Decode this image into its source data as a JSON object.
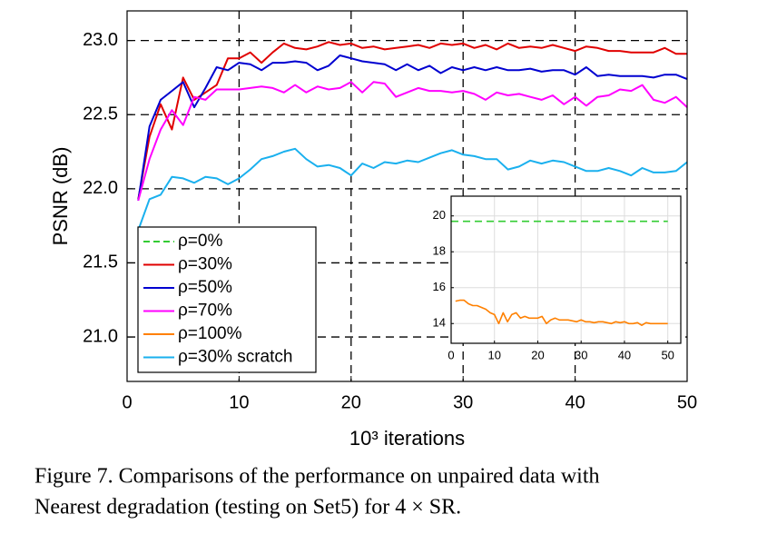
{
  "chart_data": [
    {
      "type": "line",
      "xlabel": "10³ iterations",
      "ylabel": "PSNR (dB)",
      "x": [
        1,
        2,
        3,
        4,
        5,
        6,
        7,
        8,
        9,
        10,
        11,
        12,
        13,
        14,
        15,
        16,
        17,
        18,
        19,
        20,
        21,
        22,
        23,
        24,
        25,
        26,
        27,
        28,
        29,
        30,
        31,
        32,
        33,
        34,
        35,
        36,
        37,
        38,
        39,
        40,
        41,
        42,
        43,
        44,
        45,
        46,
        47,
        48,
        49,
        50
      ],
      "xlim": [
        0,
        50
      ],
      "xticks": [
        0,
        10,
        20,
        30,
        40,
        50
      ],
      "ylim": [
        20.7,
        23.2
      ],
      "yticks": [
        {
          "value": 21,
          "label": "21.0"
        },
        21.5,
        {
          "value": 22,
          "label": "22.0"
        },
        22.5,
        {
          "value": 23,
          "label": "23.0"
        }
      ],
      "grid": true,
      "series": [
        {
          "name": "ρ=30%",
          "color": "#e00000",
          "values": [
            21.93,
            22.35,
            22.57,
            22.4,
            22.75,
            22.6,
            22.65,
            22.7,
            22.88,
            22.88,
            22.92,
            22.85,
            22.92,
            22.98,
            22.95,
            22.94,
            22.96,
            22.99,
            22.97,
            22.98,
            22.95,
            22.96,
            22.94,
            22.95,
            22.96,
            22.97,
            22.95,
            22.98,
            22.97,
            22.98,
            22.95,
            22.97,
            22.94,
            22.98,
            22.95,
            22.96,
            22.95,
            22.97,
            22.95,
            22.93,
            22.96,
            22.95,
            22.93,
            22.93,
            22.92,
            22.92,
            22.92,
            22.95,
            22.91,
            22.91
          ]
        },
        {
          "name": "ρ=50%",
          "color": "#0000d0",
          "values": [
            21.92,
            22.42,
            22.6,
            22.66,
            22.72,
            22.55,
            22.68,
            22.82,
            22.8,
            22.85,
            22.84,
            22.8,
            22.85,
            22.85,
            22.86,
            22.85,
            22.8,
            22.83,
            22.9,
            22.88,
            22.86,
            22.85,
            22.84,
            22.8,
            22.84,
            22.8,
            22.83,
            22.78,
            22.82,
            22.8,
            22.82,
            22.8,
            22.82,
            22.8,
            22.8,
            22.81,
            22.79,
            22.8,
            22.8,
            22.77,
            22.82,
            22.76,
            22.77,
            22.76,
            22.76,
            22.76,
            22.75,
            22.77,
            22.77,
            22.74
          ]
        },
        {
          "name": "ρ=70%",
          "color": "#ff00ff",
          "values": [
            21.92,
            22.2,
            22.4,
            22.53,
            22.43,
            22.62,
            22.6,
            22.67,
            22.67,
            22.67,
            22.68,
            22.69,
            22.68,
            22.65,
            22.7,
            22.65,
            22.69,
            22.67,
            22.68,
            22.72,
            22.65,
            22.72,
            22.71,
            22.62,
            22.65,
            22.68,
            22.66,
            22.66,
            22.65,
            22.66,
            22.64,
            22.6,
            22.65,
            22.63,
            22.64,
            22.62,
            22.6,
            22.63,
            22.57,
            22.62,
            22.56,
            22.62,
            22.63,
            22.67,
            22.66,
            22.7,
            22.6,
            22.58,
            22.62,
            22.55
          ]
        },
        {
          "name": "ρ=30% scratch",
          "color": "#1ab0ee",
          "values": [
            21.72,
            21.93,
            21.96,
            22.08,
            22.07,
            22.04,
            22.08,
            22.07,
            22.03,
            22.07,
            22.13,
            22.2,
            22.22,
            22.25,
            22.27,
            22.2,
            22.15,
            22.16,
            22.14,
            22.09,
            22.17,
            22.14,
            22.18,
            22.17,
            22.19,
            22.18,
            22.21,
            22.24,
            22.26,
            22.23,
            22.22,
            22.2,
            22.2,
            22.13,
            22.15,
            22.19,
            22.17,
            22.19,
            22.18,
            22.15,
            22.12,
            22.12,
            22.14,
            22.12,
            22.09,
            22.14,
            22.11,
            22.11,
            22.12,
            22.18
          ]
        }
      ]
    },
    {
      "type": "line",
      "xlim": [
        0,
        53
      ],
      "xticks": [
        0,
        10,
        20,
        30,
        40,
        50
      ],
      "ylim": [
        12.9,
        21.1
      ],
      "yticks": [
        14,
        16,
        18,
        20
      ],
      "grid": true,
      "series": [
        {
          "name": "ρ=0%",
          "color": "#33cc33",
          "linestyle": "dashed",
          "x": [
            0,
            50
          ],
          "values": [
            19.7,
            19.7
          ]
        },
        {
          "name": "ρ=100%",
          "color": "#ff8000",
          "x": [
            1,
            2,
            3,
            4,
            5,
            6,
            7,
            8,
            9,
            10,
            11,
            12,
            13,
            14,
            15,
            16,
            17,
            18,
            19,
            20,
            21,
            22,
            23,
            24,
            25,
            26,
            27,
            28,
            29,
            30,
            31,
            32,
            33,
            34,
            35,
            36,
            37,
            38,
            39,
            40,
            41,
            42,
            43,
            44,
            45,
            46,
            47,
            48,
            49,
            50
          ],
          "values": [
            15.25,
            15.3,
            15.3,
            15.1,
            15.0,
            15.0,
            14.9,
            14.8,
            14.6,
            14.5,
            14.0,
            14.6,
            14.1,
            14.5,
            14.6,
            14.3,
            14.4,
            14.3,
            14.3,
            14.3,
            14.4,
            14.0,
            14.2,
            14.3,
            14.2,
            14.2,
            14.2,
            14.15,
            14.1,
            14.2,
            14.1,
            14.1,
            14.05,
            14.1,
            14.1,
            14.05,
            14.0,
            14.1,
            14.05,
            14.1,
            14.0,
            14.0,
            14.05,
            13.9,
            14.05,
            14.0,
            14.0,
            14.0,
            14.0,
            14.0
          ]
        }
      ]
    }
  ],
  "caption": [
    "Figure 7. Comparisons of the performance on unpaired data with",
    "Nearest degradation (testing on Set5) for 4 × SR."
  ]
}
